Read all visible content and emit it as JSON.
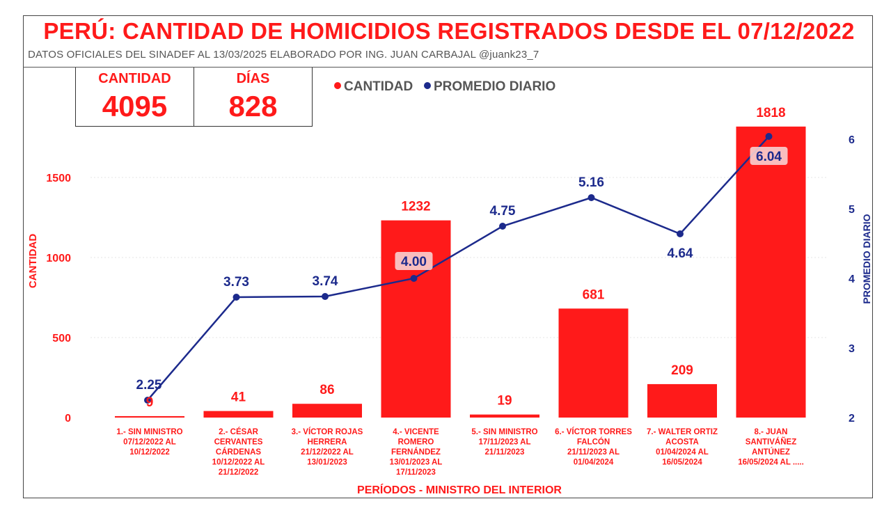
{
  "header": {
    "title": "PERÚ: CANTIDAD DE HOMICIDIOS REGISTRADOS DESDE EL 07/12/2022",
    "subtitle": "DATOS OFICIALES DEL SINADEF AL 13/03/2025 ELABORADO POR ING. JUAN CARBAJAL @juank23_7"
  },
  "kpis": [
    {
      "label": "CANTIDAD",
      "value": "4095"
    },
    {
      "label": "DÍAS",
      "value": "828"
    }
  ],
  "colors": {
    "bars": "#ff1a1a",
    "line": "#1c2a8c",
    "title": "#ff1a1a"
  },
  "chart_data": {
    "type": "bar+line",
    "legend_position": "top-center",
    "xlabel": "PERÍODOS - MINISTRO DEL INTERIOR",
    "ylabel_left": "CANTIDAD",
    "ylabel_right": "PROMEDIO DIARIO",
    "ylim_left": [
      0,
      1900
    ],
    "ylim_right": [
      2,
      6.2
    ],
    "yticks_left": [
      0,
      500,
      1000,
      1500
    ],
    "yticks_right": [
      2,
      3,
      4,
      5,
      6
    ],
    "grid": true,
    "categories": [
      [
        "1.- SIN MINISTRO",
        "07/12/2022 AL",
        "10/12/2022"
      ],
      [
        "2.- CÉSAR",
        "CERVANTES",
        "CÁRDENAS",
        "10/12/2022 AL",
        "21/12/2022"
      ],
      [
        "3.- VÍCTOR ROJAS",
        "HERRERA",
        "21/12/2022 AL",
        "13/01/2023"
      ],
      [
        "4.- VICENTE",
        "ROMERO",
        "FERNÁNDEZ",
        "13/01/2023 AL",
        "17/11/2023"
      ],
      [
        "5.- SIN MINISTRO",
        "17/11/2023 AL",
        "21/11/2023"
      ],
      [
        "6.- VÍCTOR TORRES",
        "FALCÓN",
        "21/11/2023 AL",
        "01/04/2024"
      ],
      [
        "7.- WALTER ORTIZ",
        "ACOSTA",
        "01/04/2024 AL",
        "16/05/2024"
      ],
      [
        "8.- JUAN",
        "SANTIVÁÑEZ",
        "ANTÚNEZ",
        "16/05/2024 AL ....."
      ]
    ],
    "series": [
      {
        "name": "CANTIDAD",
        "type": "bar",
        "axis": "left",
        "values": [
          9,
          41,
          86,
          1232,
          19,
          681,
          209,
          1818
        ],
        "labels": [
          "9",
          "41",
          "86",
          "1232",
          "19",
          "681",
          "209",
          "1818"
        ]
      },
      {
        "name": "PROMEDIO DIARIO",
        "type": "line",
        "axis": "right",
        "values": [
          2.25,
          3.73,
          3.74,
          4.0,
          4.75,
          5.16,
          4.64,
          6.04
        ],
        "labels": [
          "2.25",
          "3.73",
          "3.74",
          "4.00",
          "4.75",
          "5.16",
          "4.64",
          "6.04"
        ]
      }
    ]
  }
}
